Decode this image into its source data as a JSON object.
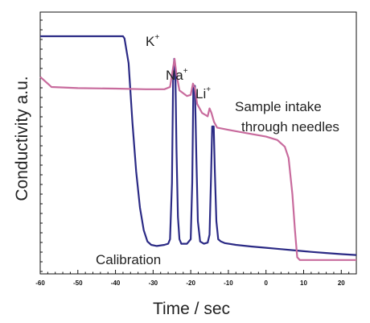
{
  "chart_data": {
    "type": "line",
    "xlabel": "Time / sec",
    "ylabel": "Conductivity a.u.",
    "xlim": [
      -60,
      24
    ],
    "ylim": [
      0,
      100
    ],
    "x_ticks": [
      "-60",
      "-50",
      "-40",
      "-30",
      "-20",
      "-10",
      "0",
      "10",
      "20"
    ],
    "grid": false,
    "annotations": {
      "k": {
        "base": "K",
        "sup": "+"
      },
      "na": {
        "base": "Na",
        "sup": "+"
      },
      "li": {
        "base": "Li",
        "sup": "+"
      },
      "sample_line1": "Sample intake",
      "sample_line2": "through  needles",
      "calibration": "Calibration"
    },
    "series": [
      {
        "color": "#2b2a85",
        "points": [
          [
            -60,
            100
          ],
          [
            -38,
            100
          ],
          [
            -37.6,
            99
          ],
          [
            -36.5,
            88
          ],
          [
            -35.5,
            62
          ],
          [
            -34.5,
            40
          ],
          [
            -33.5,
            24
          ],
          [
            -32.5,
            14
          ],
          [
            -31.5,
            9
          ],
          [
            -30.5,
            7.5
          ],
          [
            -29,
            7
          ],
          [
            -27,
            7.5
          ],
          [
            -26,
            8
          ],
          [
            -25.5,
            10
          ],
          [
            -25,
            35
          ],
          [
            -24.7,
            80
          ],
          [
            -24.4,
            90
          ],
          [
            -24.1,
            85
          ],
          [
            -23.8,
            50
          ],
          [
            -23.4,
            20
          ],
          [
            -23,
            10
          ],
          [
            -22.5,
            8
          ],
          [
            -21,
            8
          ],
          [
            -20,
            10
          ],
          [
            -19.6,
            35
          ],
          [
            -19.3,
            78
          ],
          [
            -18.9,
            78
          ],
          [
            -18.5,
            45
          ],
          [
            -18.1,
            18
          ],
          [
            -17.5,
            9
          ],
          [
            -16.5,
            8
          ],
          [
            -15.5,
            8.5
          ],
          [
            -15,
            12
          ],
          [
            -14.6,
            38
          ],
          [
            -14.3,
            60
          ],
          [
            -13.9,
            60
          ],
          [
            -13.6,
            40
          ],
          [
            -13.2,
            18
          ],
          [
            -12.7,
            10
          ],
          [
            -12,
            9
          ],
          [
            -11,
            8.3
          ],
          [
            -8,
            7.5
          ],
          [
            -4,
            6.8
          ],
          [
            0,
            6.2
          ],
          [
            4,
            5.6
          ],
          [
            8,
            5
          ],
          [
            12,
            4.4
          ],
          [
            16,
            3.9
          ],
          [
            20,
            3.4
          ],
          [
            24,
            3
          ]
        ]
      },
      {
        "color": "#c86b9d",
        "points": [
          [
            -60,
            82
          ],
          [
            -58,
            79
          ],
          [
            -57,
            77.5
          ],
          [
            -50,
            77
          ],
          [
            -40,
            76.8
          ],
          [
            -32,
            76.5
          ],
          [
            -27,
            76.5
          ],
          [
            -25.5,
            77.5
          ],
          [
            -24.8,
            85
          ],
          [
            -24.3,
            90
          ],
          [
            -23.8,
            83
          ],
          [
            -23,
            76
          ],
          [
            -21,
            73.5
          ],
          [
            -20,
            74
          ],
          [
            -19.4,
            79
          ],
          [
            -18.9,
            77
          ],
          [
            -18.3,
            70
          ],
          [
            -17,
            66
          ],
          [
            -15.5,
            64.5
          ],
          [
            -15,
            68
          ],
          [
            -14.5,
            66
          ],
          [
            -13.8,
            62
          ],
          [
            -13,
            59.5
          ],
          [
            -10,
            58.5
          ],
          [
            -5,
            57
          ],
          [
            0,
            55.5
          ],
          [
            3,
            54
          ],
          [
            5,
            51
          ],
          [
            6,
            46
          ],
          [
            7,
            30
          ],
          [
            7.7,
            14
          ],
          [
            8.3,
            2
          ],
          [
            9,
            0.8
          ],
          [
            24,
            0.8
          ]
        ]
      }
    ]
  }
}
